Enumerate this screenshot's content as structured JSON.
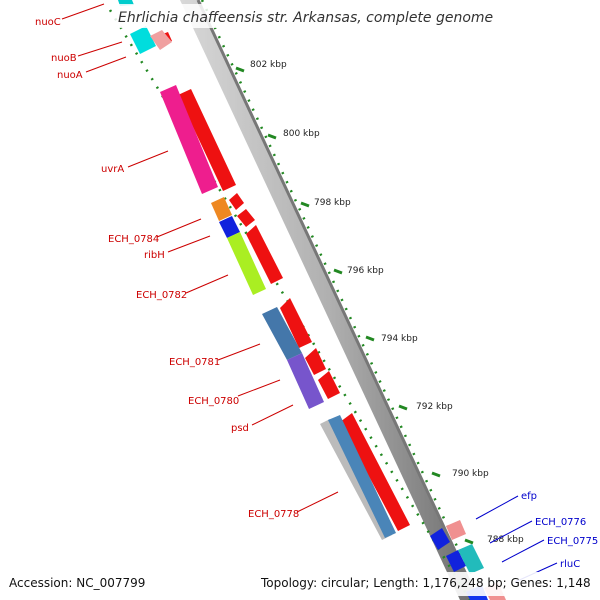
{
  "title": "Ehrlichia chaffeensis str. Arkansas, complete genome",
  "footer": {
    "accession": "Accession: NC_007799",
    "summary": "Topology: circular; Length: 1,176,248 bp; Genes: 1,148"
  },
  "ticks": [
    "802 kbp",
    "800 kbp",
    "798 kbp",
    "796 kbp",
    "794 kbp",
    "792 kbp",
    "790 kbp",
    "788 kbp"
  ],
  "labels_red": [
    "nuoC",
    "nuoB",
    "nuoA",
    "uvrA",
    "ECH_0784",
    "ribH",
    "ECH_0782",
    "ECH_0781",
    "ECH_0780",
    "psd",
    "ECH_0778"
  ],
  "labels_blue": [
    "efp",
    "ECH_0776",
    "ECH_0775",
    "rluC"
  ],
  "colors": {
    "backbone": "#8a8a8a",
    "tick_dots": "#228822",
    "forward_genes": "#ee1111",
    "label_red": "#cc0000",
    "label_blue": "#0000cc"
  }
}
